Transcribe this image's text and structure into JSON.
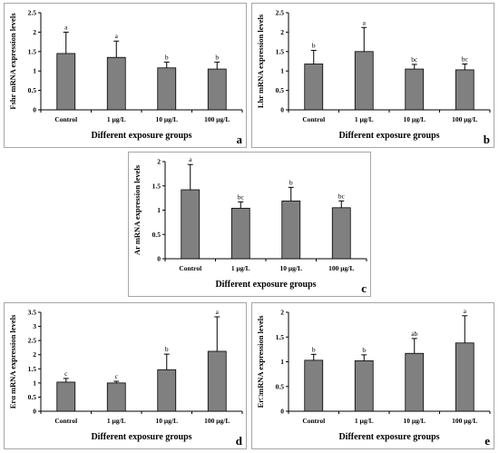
{
  "chart_data": [
    {
      "type": "bar",
      "panel_letter": "a",
      "ylabel": "Fshr mRNA expression levels",
      "xlabel": "Different exposure groups",
      "categories": [
        "Control",
        "1 μg/L",
        "10 μg/L",
        "100 μg/L"
      ],
      "values": [
        1.45,
        1.35,
        1.08,
        1.05
      ],
      "errors": [
        0.55,
        0.42,
        0.15,
        0.18
      ],
      "significance": [
        "a",
        "a",
        "b",
        "b"
      ],
      "ylim": [
        0,
        2.5
      ],
      "yticks": [
        "0",
        "0.5",
        "1",
        "1.5",
        "2",
        "2.5"
      ]
    },
    {
      "type": "bar",
      "panel_letter": "b",
      "ylabel": "Lhr mRNA expression levels",
      "xlabel": "Different exposure groups",
      "categories": [
        "Control",
        "1 μg/L",
        "10 μg/L",
        "100 μg/L"
      ],
      "values": [
        1.18,
        1.5,
        1.05,
        1.03
      ],
      "errors": [
        0.35,
        0.62,
        0.12,
        0.15
      ],
      "significance": [
        "b",
        "a",
        "bc",
        "bc"
      ],
      "ylim": [
        0,
        2.5
      ],
      "yticks": [
        "0",
        "0.5",
        "1",
        "1.5",
        "2",
        "2.5"
      ]
    },
    {
      "type": "bar",
      "panel_letter": "c",
      "ylabel": "Ar mRNA expression levels",
      "xlabel": "Different exposure groups",
      "categories": [
        "Control",
        "1 μg/L",
        "10 μg/L",
        "100 μg/L"
      ],
      "values": [
        1.42,
        1.04,
        1.19,
        1.05
      ],
      "errors": [
        0.52,
        0.13,
        0.28,
        0.14
      ],
      "significance": [
        "a",
        "bc",
        "b",
        "bc"
      ],
      "ylim": [
        0,
        2
      ],
      "yticks": [
        "0",
        "0.5",
        "1",
        "1.5",
        "2"
      ]
    },
    {
      "type": "bar",
      "panel_letter": "d",
      "ylabel": "Erα mRNA expression levels",
      "xlabel": "Different exposure groups",
      "categories": [
        "Control",
        "1 μg/L",
        "10 μg/L",
        "100 μg/L"
      ],
      "values": [
        1.03,
        1.0,
        1.47,
        2.12
      ],
      "errors": [
        0.13,
        0.06,
        0.55,
        1.22
      ],
      "significance": [
        "c",
        "c",
        "b",
        "a"
      ],
      "ylim": [
        0,
        3.5
      ],
      "yticks": [
        "0",
        "0.5",
        "1",
        "1.5",
        "2",
        "2.5",
        "3",
        "3.5"
      ]
    },
    {
      "type": "bar",
      "panel_letter": "e",
      "ylabel": "Er□mRNA expression levels",
      "xlabel": "Different exposure groups",
      "categories": [
        "Control",
        "1 μg/L",
        "10 μg/L",
        "100 μg/L"
      ],
      "values": [
        1.03,
        1.02,
        1.17,
        1.38
      ],
      "errors": [
        0.12,
        0.12,
        0.3,
        0.55
      ],
      "significance": [
        "b",
        "b",
        "ab",
        "a"
      ],
      "ylim": [
        0,
        2
      ],
      "yticks": [
        "0",
        "0.5",
        "1",
        "1.5",
        "2"
      ]
    }
  ]
}
